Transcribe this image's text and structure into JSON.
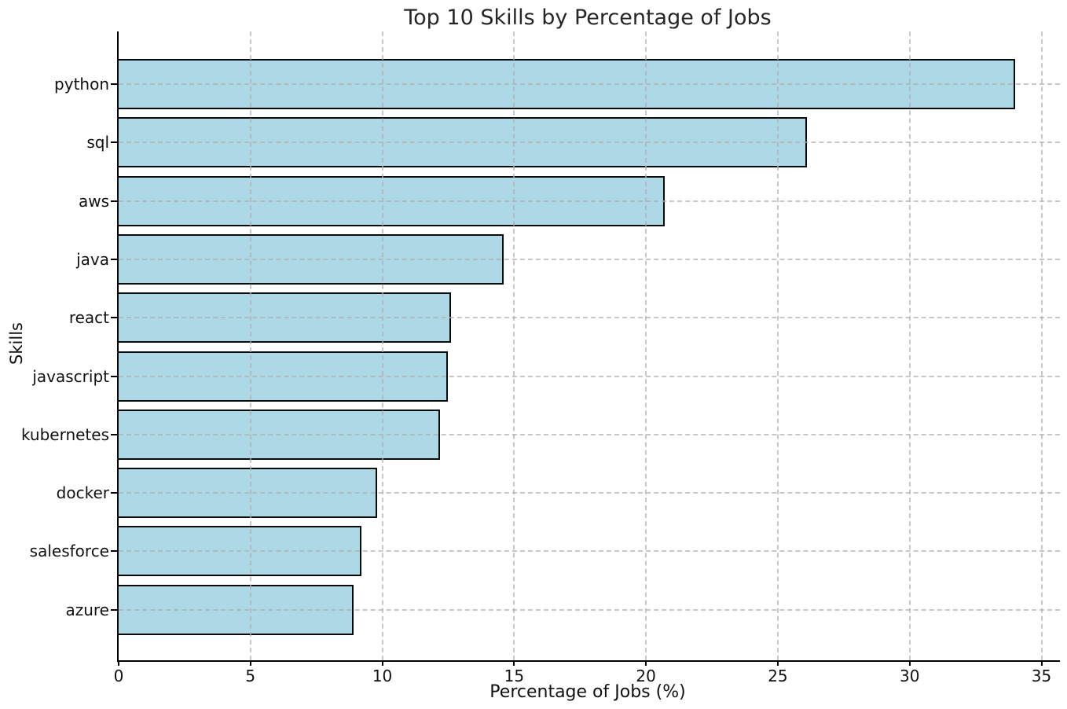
{
  "chart_data": {
    "type": "bar",
    "orientation": "horizontal",
    "title": "Top 10 Skills by Percentage of Jobs",
    "xlabel": "Percentage of Jobs (%)",
    "ylabel": "Skills",
    "categories": [
      "python",
      "sql",
      "aws",
      "java",
      "react",
      "javascript",
      "kubernetes",
      "docker",
      "salesforce",
      "azure"
    ],
    "values": [
      34.0,
      26.1,
      20.7,
      14.6,
      12.6,
      12.5,
      12.2,
      9.8,
      9.2,
      8.9
    ],
    "xticks": [
      0,
      5,
      10,
      15,
      20,
      25,
      30,
      35
    ],
    "xlim": [
      0,
      35.7
    ],
    "grid": "dashed-both-axes",
    "legend": "none",
    "colors": {
      "bar_fill": "#ADD8E6",
      "bar_edge": "#0a0a0a",
      "grid_line": "rgba(175,175,175,0.7)",
      "background": "#ffffff",
      "text": "#1a1a1a"
    }
  }
}
